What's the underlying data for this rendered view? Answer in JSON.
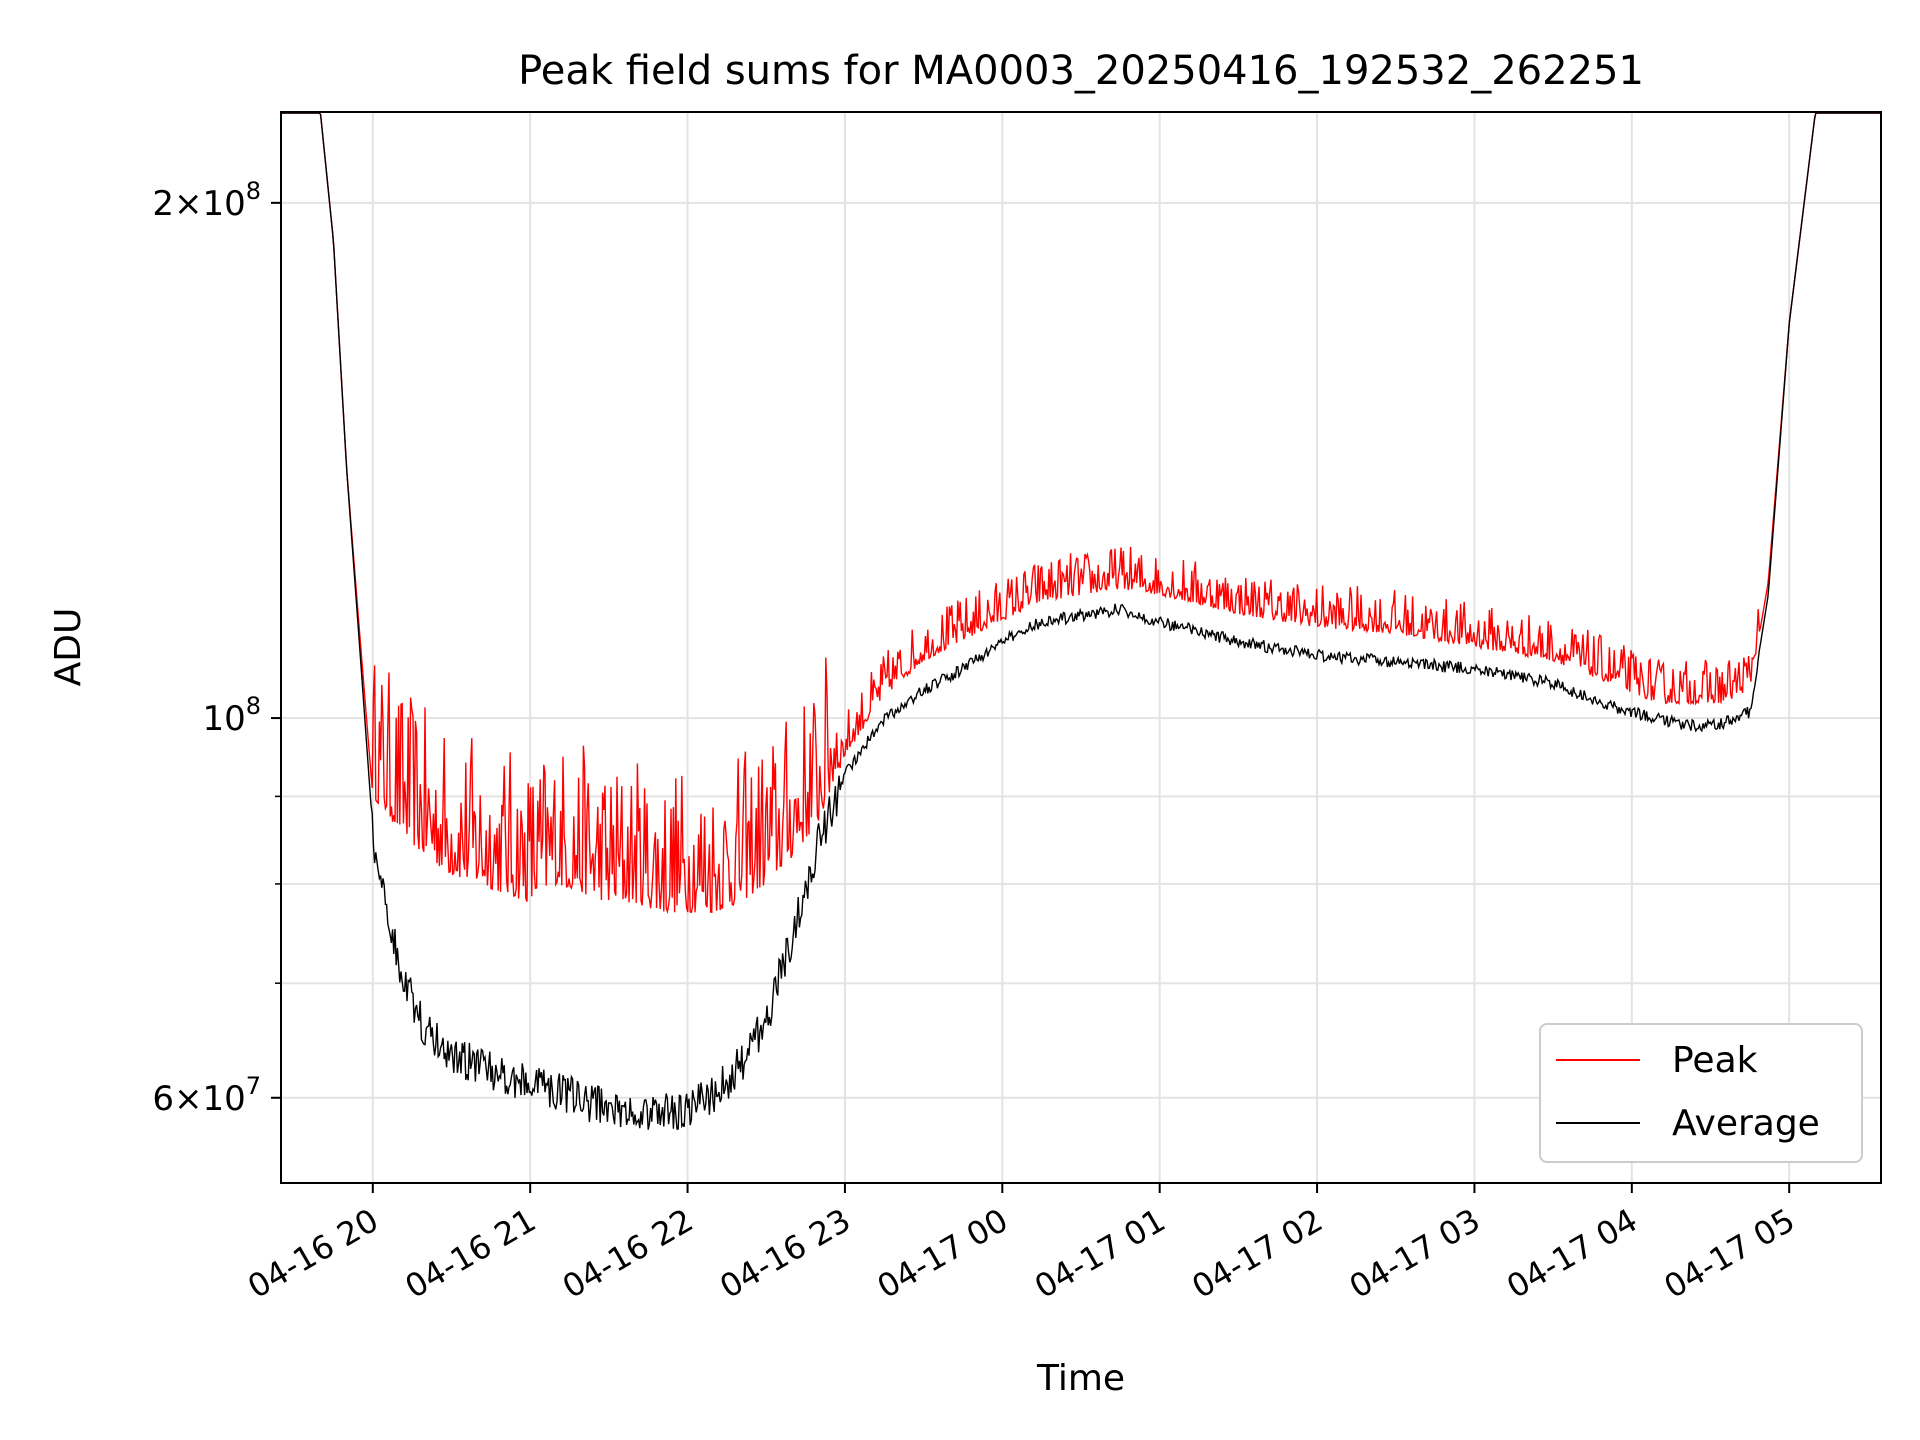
{
  "chart_data": {
    "type": "line",
    "title": "Peak field sums for MA0003_20250416_192532_262251",
    "xlabel": "Time",
    "ylabel": "ADU",
    "yscale": "log",
    "ylim": [
      53500000,
      226000000
    ],
    "xlim": [
      "2025-04-16 19:25",
      "2025-04-17 05:35"
    ],
    "grid": true,
    "legend_position": "lower-right",
    "x_ticks": [
      {
        "t": "2025-04-16 20:00",
        "label": "04-16 20"
      },
      {
        "t": "2025-04-16 21:00",
        "label": "04-16 21"
      },
      {
        "t": "2025-04-16 22:00",
        "label": "04-16 22"
      },
      {
        "t": "2025-04-16 23:00",
        "label": "04-16 23"
      },
      {
        "t": "2025-04-17 00:00",
        "label": "04-17 00"
      },
      {
        "t": "2025-04-17 01:00",
        "label": "04-17 01"
      },
      {
        "t": "2025-04-17 02:00",
        "label": "04-17 02"
      },
      {
        "t": "2025-04-17 03:00",
        "label": "04-17 03"
      },
      {
        "t": "2025-04-17 04:00",
        "label": "04-17 04"
      },
      {
        "t": "2025-04-17 05:00",
        "label": "04-17 05"
      }
    ],
    "y_ticks": [
      {
        "value": 60000000,
        "mantissa": "6",
        "exponent": "7"
      },
      {
        "value": 100000000,
        "mantissa": "",
        "exponent": "8"
      },
      {
        "value": 200000000,
        "mantissa": "2",
        "exponent": "8"
      }
    ],
    "y_minor_ticks": [
      70000000,
      80000000,
      90000000
    ],
    "series": [
      {
        "name": "Peak",
        "color": "#ff0000",
        "x": [
          "2025-04-16 19:25",
          "2025-04-16 19:40",
          "2025-04-16 19:45",
          "2025-04-16 19:50",
          "2025-04-16 19:55",
          "2025-04-16 20:00",
          "2025-04-16 20:10",
          "2025-04-16 20:20",
          "2025-04-16 20:30",
          "2025-04-16 20:40",
          "2025-04-16 20:50",
          "2025-04-16 21:00",
          "2025-04-16 21:10",
          "2025-04-16 21:20",
          "2025-04-16 21:30",
          "2025-04-16 21:40",
          "2025-04-16 21:50",
          "2025-04-16 22:00",
          "2025-04-16 22:10",
          "2025-04-16 22:20",
          "2025-04-16 22:30",
          "2025-04-16 22:40",
          "2025-04-16 22:50",
          "2025-04-16 23:00",
          "2025-04-16 23:15",
          "2025-04-16 23:30",
          "2025-04-16 23:45",
          "2025-04-17 00:00",
          "2025-04-17 00:15",
          "2025-04-17 00:30",
          "2025-04-17 00:45",
          "2025-04-17 01:00",
          "2025-04-17 01:30",
          "2025-04-17 02:00",
          "2025-04-17 02:30",
          "2025-04-17 03:00",
          "2025-04-17 03:30",
          "2025-04-17 03:50",
          "2025-04-17 04:10",
          "2025-04-17 04:25",
          "2025-04-17 04:35",
          "2025-04-17 04:45",
          "2025-04-17 04:52",
          "2025-04-17 05:00",
          "2025-04-17 05:10",
          "2025-04-17 05:35"
        ],
        "values": [
          226000000,
          226000000,
          190000000,
          140000000,
          112000000,
          90000000,
          86000000,
          83000000,
          81000000,
          80000000,
          79000000,
          78000000,
          80000000,
          79000000,
          78000000,
          78000000,
          77000000,
          77000000,
          77000000,
          78000000,
          80000000,
          83000000,
          87000000,
          95000000,
          103000000,
          108000000,
          111000000,
          114000000,
          117000000,
          118000000,
          119000000,
          118000000,
          115000000,
          113000000,
          112000000,
          110000000,
          108000000,
          105000000,
          102000000,
          102000000,
          102000000,
          104000000,
          120000000,
          170000000,
          226000000,
          226000000
        ]
      },
      {
        "name": "Average",
        "color": "#000000",
        "x": [
          "2025-04-16 19:25",
          "2025-04-16 19:40",
          "2025-04-16 19:45",
          "2025-04-16 19:50",
          "2025-04-16 19:55",
          "2025-04-16 20:00",
          "2025-04-16 20:10",
          "2025-04-16 20:20",
          "2025-04-16 20:30",
          "2025-04-16 20:40",
          "2025-04-16 20:50",
          "2025-04-16 21:00",
          "2025-04-16 21:10",
          "2025-04-16 21:20",
          "2025-04-16 21:30",
          "2025-04-16 21:40",
          "2025-04-16 21:50",
          "2025-04-16 22:00",
          "2025-04-16 22:10",
          "2025-04-16 22:20",
          "2025-04-16 22:30",
          "2025-04-16 22:40",
          "2025-04-16 22:50",
          "2025-04-16 23:00",
          "2025-04-16 23:15",
          "2025-04-16 23:30",
          "2025-04-16 23:45",
          "2025-04-17 00:00",
          "2025-04-17 00:15",
          "2025-04-17 00:30",
          "2025-04-17 00:45",
          "2025-04-17 01:00",
          "2025-04-17 01:30",
          "2025-04-17 02:00",
          "2025-04-17 02:30",
          "2025-04-17 03:00",
          "2025-04-17 03:30",
          "2025-04-17 03:50",
          "2025-04-17 04:10",
          "2025-04-17 04:25",
          "2025-04-17 04:35",
          "2025-04-17 04:45",
          "2025-04-17 04:52",
          "2025-04-17 05:00",
          "2025-04-17 05:10",
          "2025-04-17 05:35"
        ],
        "values": [
          226000000,
          226000000,
          190000000,
          140000000,
          110000000,
          86000000,
          72000000,
          66000000,
          64000000,
          63000000,
          62000000,
          61500000,
          61000000,
          60000000,
          59500000,
          59000000,
          59000000,
          59500000,
          60500000,
          63000000,
          67000000,
          75000000,
          85000000,
          93000000,
          100000000,
          104000000,
          107000000,
          111000000,
          114000000,
          115000000,
          116000000,
          114000000,
          111000000,
          109000000,
          108000000,
          107000000,
          105000000,
          102000000,
          100000000,
          99000000,
          99500000,
          101000000,
          118000000,
          170000000,
          226000000,
          226000000
        ]
      }
    ]
  }
}
